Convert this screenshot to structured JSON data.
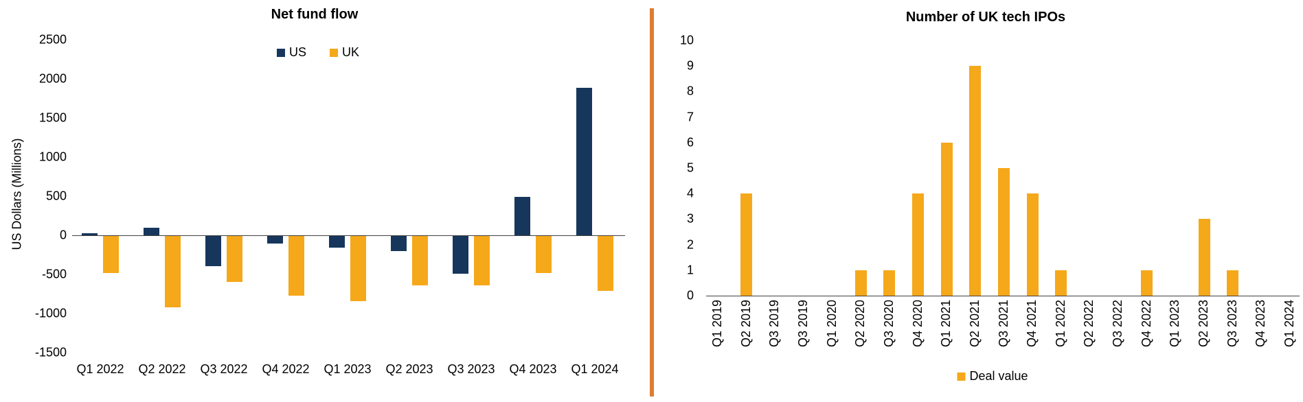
{
  "divider": {
    "color": "#DD7D31"
  },
  "chart_data": [
    {
      "type": "bar",
      "title": "Net fund flow",
      "ylabel": "US Dollars (Millions)",
      "categories": [
        "Q1 2022",
        "Q2 2022",
        "Q3 2022",
        "Q4 2022",
        "Q1 2023",
        "Q2 2023",
        "Q3 2023",
        "Q4 2023",
        "Q1 2024"
      ],
      "series": [
        {
          "name": "US",
          "color": "#16365C",
          "values": [
            30,
            100,
            -390,
            -100,
            -150,
            -190,
            -480,
            490,
            1890
          ]
        },
        {
          "name": "UK",
          "color": "#F5A81A",
          "values": [
            -470,
            -910,
            -590,
            -760,
            -830,
            -630,
            -630,
            -470,
            -700
          ]
        }
      ],
      "ylim": [
        -1500,
        2500
      ],
      "ytick_step": 500,
      "legend_position": "top",
      "grid": false
    },
    {
      "type": "bar",
      "title": "Number of UK tech IPOs",
      "ylabel": "",
      "categories": [
        "Q1 2019",
        "Q2 2019",
        "Q3 2019",
        "Q3 2019",
        "Q1 2020",
        "Q2 2020",
        "Q3 2020",
        "Q4 2020",
        "Q1 2021",
        "Q2 2021",
        "Q3 2021",
        "Q4 2021",
        "Q1 2022",
        "Q2 2022",
        "Q3 2022",
        "Q4 2022",
        "Q1 2023",
        "Q2 2023",
        "Q3 2023",
        "Q4 2023",
        "Q1 2024"
      ],
      "series": [
        {
          "name": "Deal value",
          "color": "#F5A81A",
          "values": [
            0,
            4,
            0,
            0,
            0,
            1,
            1,
            4,
            6,
            9,
            5,
            4,
            1,
            0,
            0,
            1,
            0,
            3,
            1,
            0,
            0
          ]
        }
      ],
      "ylim": [
        0,
        10
      ],
      "ytick_step": 1,
      "legend_position": "bottom",
      "grid": false
    }
  ]
}
